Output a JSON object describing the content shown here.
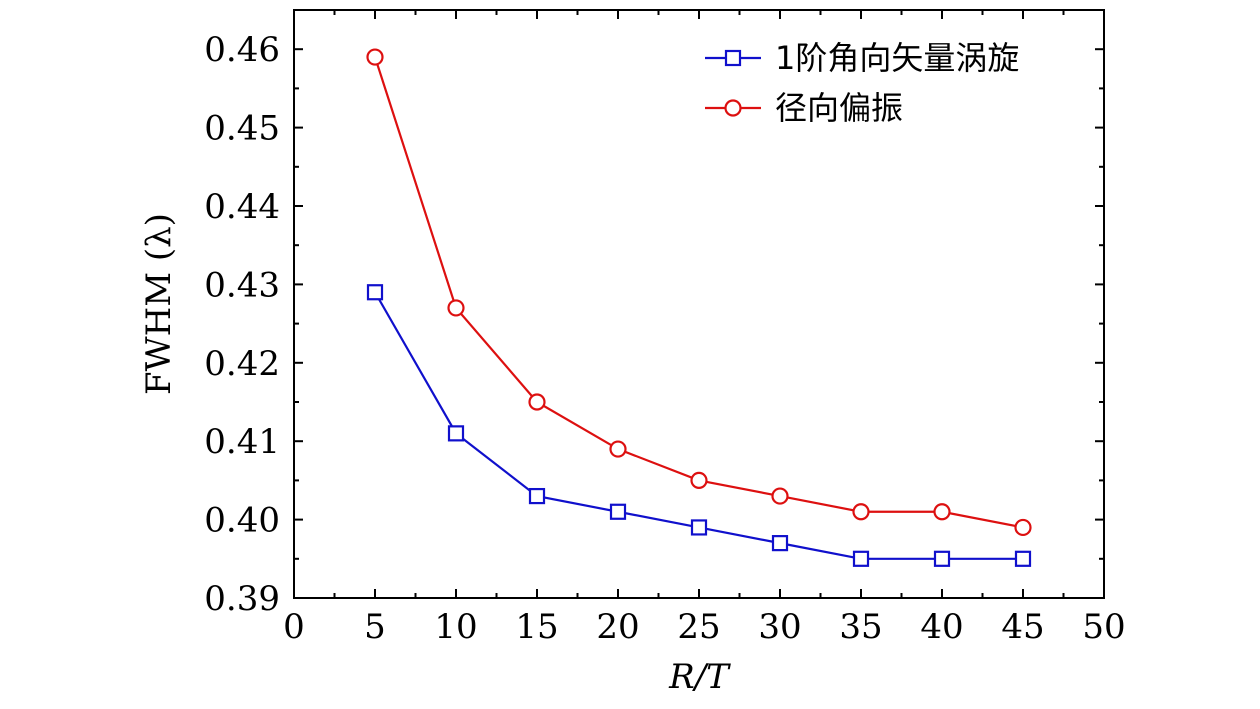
{
  "chart_data": {
    "type": "line",
    "title": "",
    "xlabel": "R/T",
    "ylabel": "FWHM (λ)",
    "xlim": [
      0,
      50
    ],
    "ylim": [
      0.39,
      0.465
    ],
    "xticks": [
      0,
      5,
      10,
      15,
      20,
      25,
      30,
      35,
      40,
      45,
      50
    ],
    "yticks": [
      0.39,
      0.4,
      0.41,
      0.42,
      0.43,
      0.44,
      0.45,
      0.46
    ],
    "xtick_labels": [
      "0",
      "5",
      "10",
      "15",
      "20",
      "25",
      "30",
      "35",
      "40",
      "45",
      "50"
    ],
    "ytick_labels": [
      "0.39",
      "0.40",
      "0.41",
      "0.42",
      "0.43",
      "0.44",
      "0.45",
      "0.46"
    ],
    "grid": false,
    "legend_position": "top-right",
    "x": [
      5,
      10,
      15,
      20,
      25,
      30,
      35,
      40,
      45
    ],
    "series": [
      {
        "name": "1阶角向矢量涡旋",
        "marker": "square",
        "color": "#1010cc",
        "values": [
          0.429,
          0.411,
          0.403,
          0.401,
          0.399,
          0.397,
          0.395,
          0.395,
          0.395
        ]
      },
      {
        "name": "径向偏振",
        "marker": "circle",
        "color": "#dd1010",
        "values": [
          0.459,
          0.427,
          0.415,
          0.409,
          0.405,
          0.403,
          0.401,
          0.401,
          0.399
        ]
      }
    ]
  }
}
